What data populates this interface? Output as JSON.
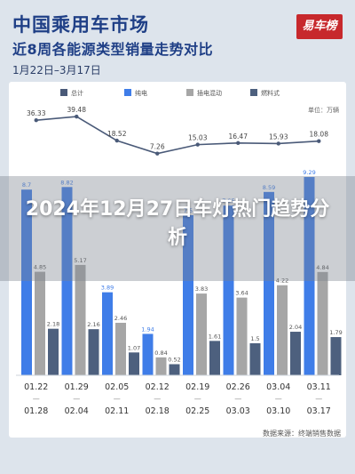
{
  "header": {
    "title": "中国乘用车市场",
    "subtitle": "近8周各能源类型销量走势对比",
    "date_range": "1月22日–3月17日",
    "logo_text": "易车榜"
  },
  "overlay": {
    "headline": "2024年12月27日车灯热门趋势分析"
  },
  "footer": {
    "source": "数据来源：终端销售数据"
  },
  "colors": {
    "total_line": "#4a5a78",
    "bev": "#3f7de8",
    "phev": "#a6a6a6",
    "ice": "#4d607e",
    "title": "#1f3f86"
  },
  "chart_data": {
    "type": "bar",
    "unit": "单位：万辆",
    "categories": [
      [
        "01.22",
        "01.28"
      ],
      [
        "01.29",
        "02.04"
      ],
      [
        "02.05",
        "02.11"
      ],
      [
        "02.12",
        "02.18"
      ],
      [
        "02.19",
        "02.25"
      ],
      [
        "02.26",
        "03.03"
      ],
      [
        "03.04",
        "03.10"
      ],
      [
        "03.11",
        "03.17"
      ]
    ],
    "legend": [
      "总计",
      "纯电",
      "插电混动",
      "燃料式"
    ],
    "total": [
      36.33,
      39.48,
      18.52,
      7.26,
      15.03,
      16.47,
      15.93,
      18.08
    ],
    "series": [
      {
        "name": "纯电",
        "color": "#3f7de8",
        "values": [
          8.7,
          8.82,
          3.89,
          1.94,
          7.5,
          7.95,
          8.59,
          9.29
        ]
      },
      {
        "name": "插电混动",
        "color": "#a6a6a6",
        "values": [
          4.85,
          5.17,
          2.46,
          0.84,
          3.83,
          3.64,
          4.22,
          4.84
        ]
      },
      {
        "name": "燃料式",
        "color": "#4d607e",
        "values": [
          2.18,
          2.16,
          1.07,
          0.52,
          1.61,
          1.5,
          2.04,
          1.79
        ]
      }
    ],
    "ylim": [
      0,
      10
    ]
  }
}
